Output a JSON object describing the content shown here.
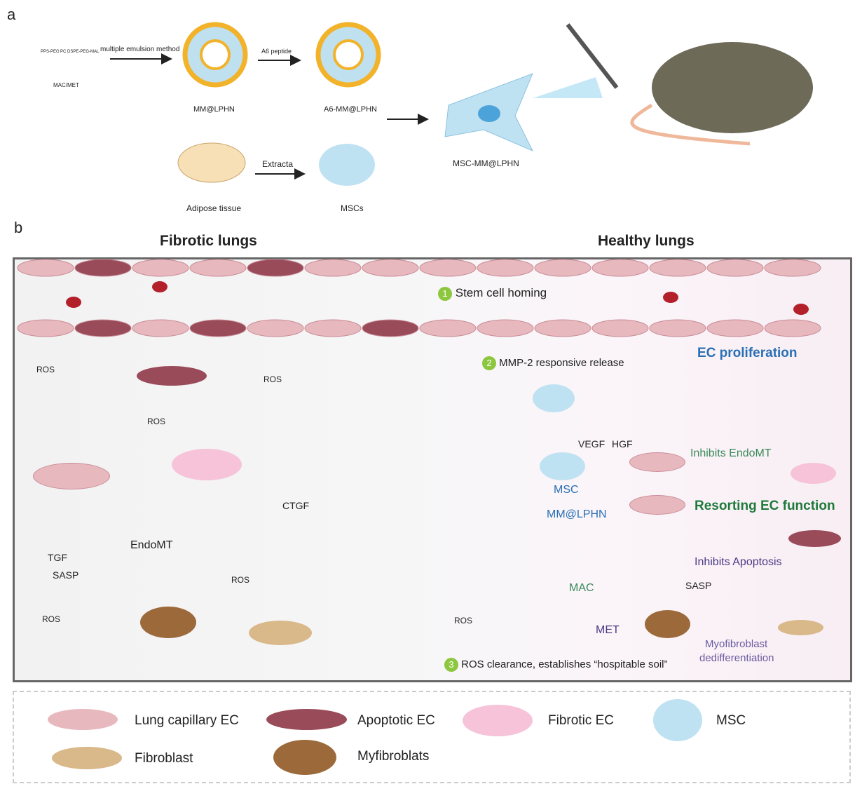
{
  "panel_a": {
    "label": "a",
    "components": [
      "PPS-PEG",
      "PC",
      "DSPE-PEG-MAL"
    ],
    "drugs": "MAC/MET",
    "step1": "multiple emulsion method",
    "np1": "MM@LPHN",
    "step2": "A6 peptide",
    "np2": "A6-MM@LPHN",
    "tissue": "Adipose tissue",
    "step3": "Extracta",
    "mscs": "MSCs",
    "product": "MSC-MM@LPHN"
  },
  "panel_b": {
    "label": "b",
    "left_title": "Fibrotic lungs",
    "right_title": "Healthy lungs",
    "ros": "ROS",
    "steps": [
      {
        "num": "1",
        "text": "Stem cell homing"
      },
      {
        "num": "2",
        "text": "MMP-2 responsive release"
      },
      {
        "num": "3",
        "text": "ROS clearance, establishes “hospitable soil”"
      }
    ],
    "left_labels": {
      "ctgf": "CTGF",
      "endomt": "EndoMT",
      "tgf": "TGF",
      "sasp": "SASP"
    },
    "right_labels": {
      "vegf": "VEGF",
      "hgf": "HGF",
      "msc": "MSC",
      "mm_lphn": "MM@LPHN",
      "mac": "MAC",
      "met": "MET",
      "sasp": "SASP",
      "ec_prolif": "EC proliferation",
      "inhibits_endomt": "Inhibits EndoMT",
      "resorting": "Resorting EC function",
      "inhibits_apoptosis": "Inhibits Apoptosis",
      "myofib": "Myofibroblast",
      "dediff": "dedifferentiation"
    }
  },
  "legend": [
    {
      "label": "Lung capillary EC",
      "color": "#e8b8bf"
    },
    {
      "label": "Apoptotic EC",
      "color": "#9a4b5a"
    },
    {
      "label": "Fibrotic EC",
      "color": "#f6c3d8"
    },
    {
      "label": "MSC",
      "color": "#bfe2f3"
    },
    {
      "label": "Fibroblast",
      "color": "#d9b889"
    },
    {
      "label": "Myfibroblats",
      "color": "#9c6a3a"
    }
  ],
  "colors": {
    "blue_text": "#2a6fb5",
    "green_text": "#1f7a3c",
    "purple_text": "#4b3a86",
    "step_badge": "#8dc63f"
  }
}
